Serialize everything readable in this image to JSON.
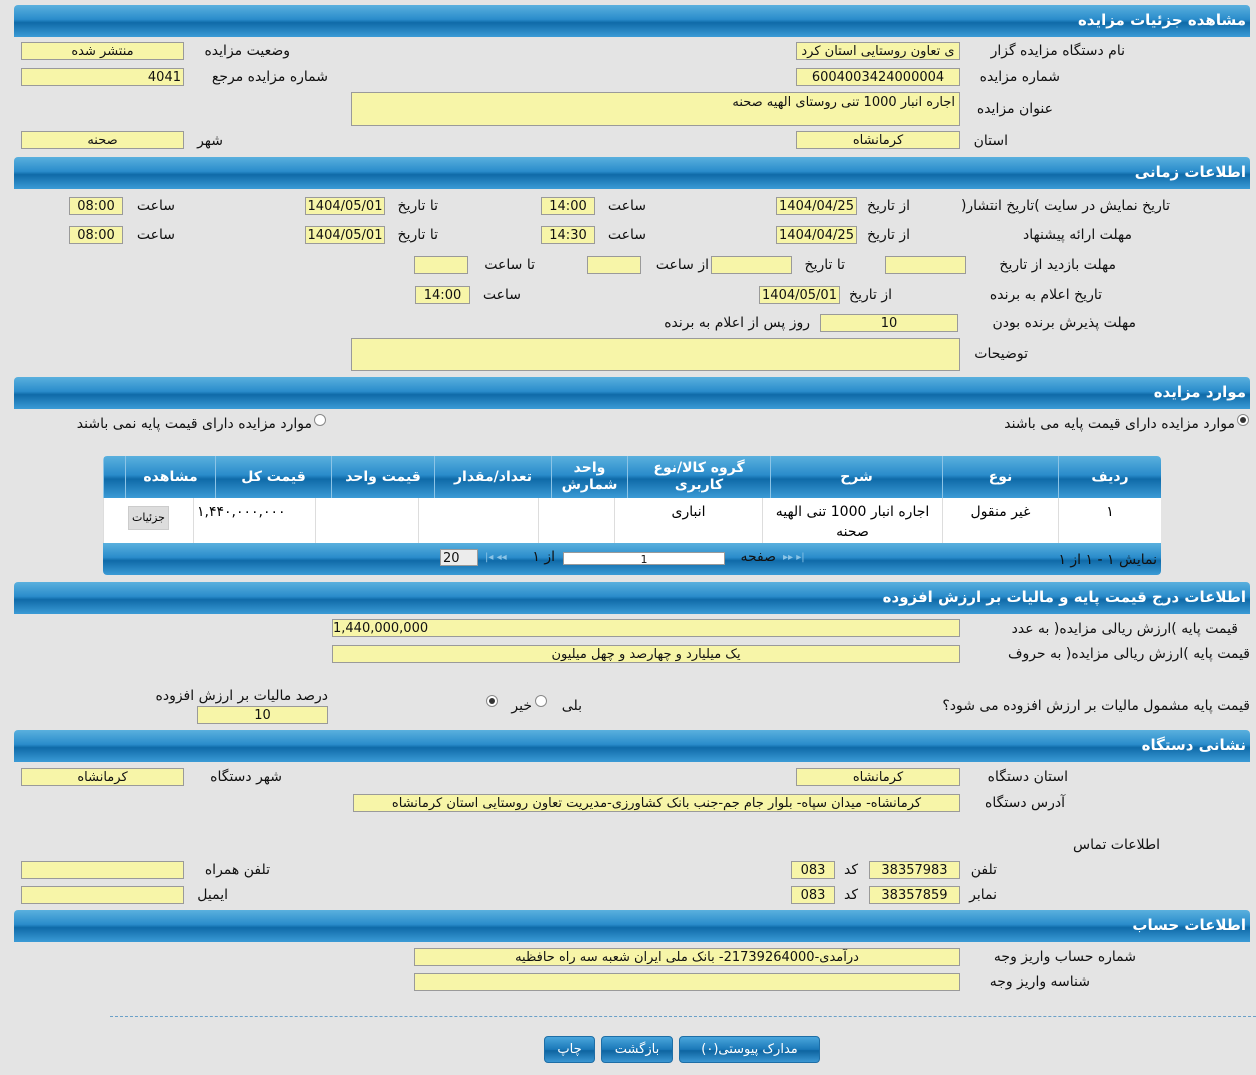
{
  "sections": {
    "details": "مشاهده جزئیات مزایده",
    "time": "اطلاعات زمانی",
    "items": "موارد مزایده",
    "price": "اطلاعات درج قیمت پایه و مالیات بر ارزش افزوده",
    "address": "نشانی دستگاه",
    "account": "اطلاعات حساب"
  },
  "details": {
    "org_label": "نام دستگاه مزایده گزار",
    "org_value": "ی تعاون روستایی استان کرد",
    "status_label": "وضعیت مزایده",
    "status_value": "منتشر شده",
    "number_label": "شماره مزایده",
    "number_value": "6004003424000004",
    "ref_label": "شماره مزایده مرجع",
    "ref_value": "4041",
    "title_label": "عنوان مزایده",
    "title_value": "اجاره انبار 1000 تنی  روستای الهیه صحنه",
    "province_label": "استان",
    "province_value": "کرمانشاه",
    "city_label": "شهر",
    "city_value": "صحنه"
  },
  "time": {
    "from_date": "از تاریخ",
    "to_date": "تا تاریخ",
    "hour": "ساعت",
    "from_hour": "از ساعت",
    "to_hour": "تا ساعت",
    "publish_label": "تاریخ نمایش در سایت )تاریخ انتشار(",
    "publish_from": "1404/04/25",
    "publish_from_time": "14:00",
    "publish_to": "1404/05/01",
    "publish_to_time": "08:00",
    "offer_label": "مهلت ارائه پیشنهاد",
    "offer_from": "1404/04/25",
    "offer_from_time": "14:30",
    "offer_to": "1404/05/01",
    "offer_to_time": "08:00",
    "visit_label": "مهلت بازدید  از تاریخ",
    "winner_label": "تاریخ اعلام به برنده",
    "winner_date": "1404/05/01",
    "winner_time": "14:00",
    "accept_label": "مهلت پذیرش برنده بودن",
    "accept_value": "10",
    "accept_suffix": "روز پس از اعلام به برنده",
    "desc_label": "توضیحات",
    "desc_value": ""
  },
  "items": {
    "radio_has_base": "موارد مزایده دارای قیمت پایه می باشند",
    "radio_no_base": "موارد مزایده دارای قیمت پایه نمی باشند",
    "selected": "has_base",
    "columns": [
      "ردیف",
      "نوع",
      "شرح",
      "گروه کالا/نوع کاربری",
      "واحد شمارش",
      "تعداد/مقدار",
      "قیمت واحد",
      "قیمت کل",
      "مشاهده"
    ],
    "rows": [
      {
        "row": "۱",
        "type": "غیر منقول",
        "desc": "اجاره انبار 1000 تنی الهیه صحنه",
        "group": "انباری",
        "unit": "",
        "qty": "",
        "unit_price": "",
        "total": "۱,۴۴۰,۰۰۰,۰۰۰",
        "view": "جزئیات"
      }
    ],
    "pager": {
      "showing": "نمایش ۱ - ۱ از ۱",
      "page_label": "صفحه",
      "page": "1",
      "of": "از ۱",
      "page_size": "20"
    }
  },
  "price": {
    "num_label": "قیمت پایه )ارزش ریالی مزایده( به عدد",
    "num_value": "1,440,000,000",
    "words_label": "قیمت پایه )ارزش ریالی مزایده( به حروف",
    "words_value": "یک میلیارد و چهارصد و چهل میلیون",
    "vat_q": "قیمت پایه مشمول مالیات بر ارزش افزوده می شود؟",
    "yes": "بلی",
    "no": "خیر",
    "selected": "no",
    "vat_pct_label": "درصد مالیات بر ارزش افزوده",
    "vat_pct_value": "10"
  },
  "address": {
    "province_label": "استان دستگاه",
    "province_value": "کرمانشاه",
    "city_label": "شهر دستگاه",
    "city_value": "کرمانشاه",
    "addr_label": "آدرس دستگاه",
    "addr_value": "کرمانشاه- میدان سپاه- بلوار جام جم-جنب بانک کشاورزی-مدیریت تعاون روستایی استان کرمانشاه",
    "contact_title": "اطلاعات تماس",
    "phone_label": "تلفن",
    "phone_value": "38357983",
    "code_label": "کد",
    "phone_code": "083",
    "fax_label": "نمابر",
    "fax_value": "38357859",
    "fax_code": "083",
    "mobile_label": "تلفن همراه",
    "mobile_value": "",
    "email_label": "ایمیل",
    "email_value": ""
  },
  "account": {
    "acc_label": "شماره حساب واریز وجه",
    "acc_value": "درآمدی-21739264000- بانک ملی ایران شعبه سه راه حافظیه",
    "id_label": "شناسه واریز وجه",
    "id_value": ""
  },
  "buttons": {
    "attachments": "مدارک پیوستی(۰)",
    "back": "بازگشت",
    "print": "چاپ"
  },
  "colors": {
    "header_blue": "#2a8ccb",
    "field_yellow": "#f7f5a8",
    "background": "#e4e4e4"
  }
}
